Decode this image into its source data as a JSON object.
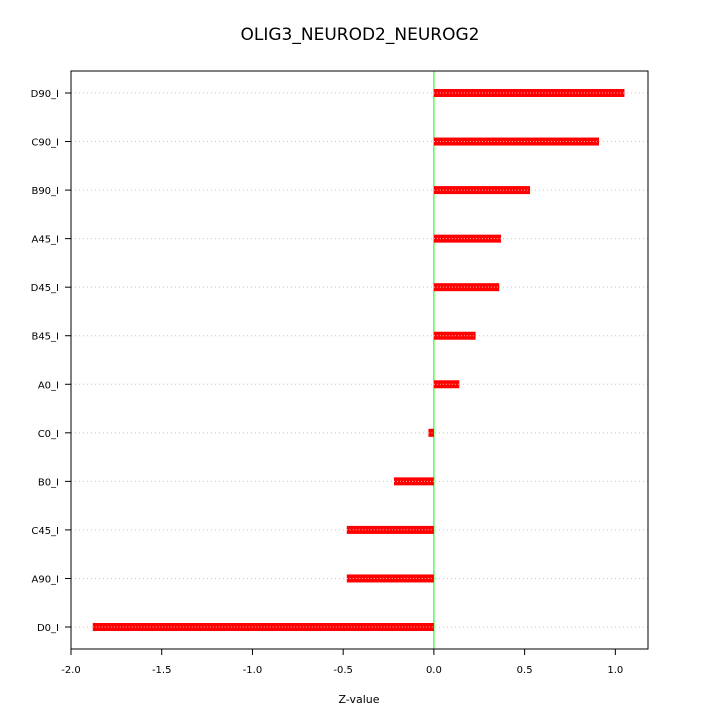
{
  "chart_data": {
    "type": "bar",
    "orientation": "horizontal",
    "title": "OLIG3_NEUROD2_NEUROG2",
    "xlabel": "Z-value",
    "ylabel": "",
    "xlim": [
      -2.0,
      1.18
    ],
    "xticks": [
      -2.0,
      -1.5,
      -1.0,
      -0.5,
      0.0,
      0.5,
      1.0
    ],
    "xtick_labels": [
      "-2.0",
      "-1.5",
      "-1.0",
      "-0.5",
      "0.0",
      "0.5",
      "1.0"
    ],
    "grid": "horizontal-dotted",
    "reference_line": 0.0,
    "categories": [
      "D90_I",
      "C90_I",
      "B90_I",
      "A45_I",
      "D45_I",
      "B45_I",
      "A0_I",
      "C0_I",
      "B0_I",
      "C45_I",
      "A90_I",
      "D0_I"
    ],
    "values": [
      1.05,
      0.91,
      0.53,
      0.37,
      0.36,
      0.23,
      0.14,
      -0.03,
      -0.22,
      -0.48,
      -0.48,
      -1.88
    ],
    "colors": {
      "bar": "#ff0000",
      "reference": "#00ff00",
      "grid": "#c8c8c8",
      "frame": "#000000"
    }
  }
}
